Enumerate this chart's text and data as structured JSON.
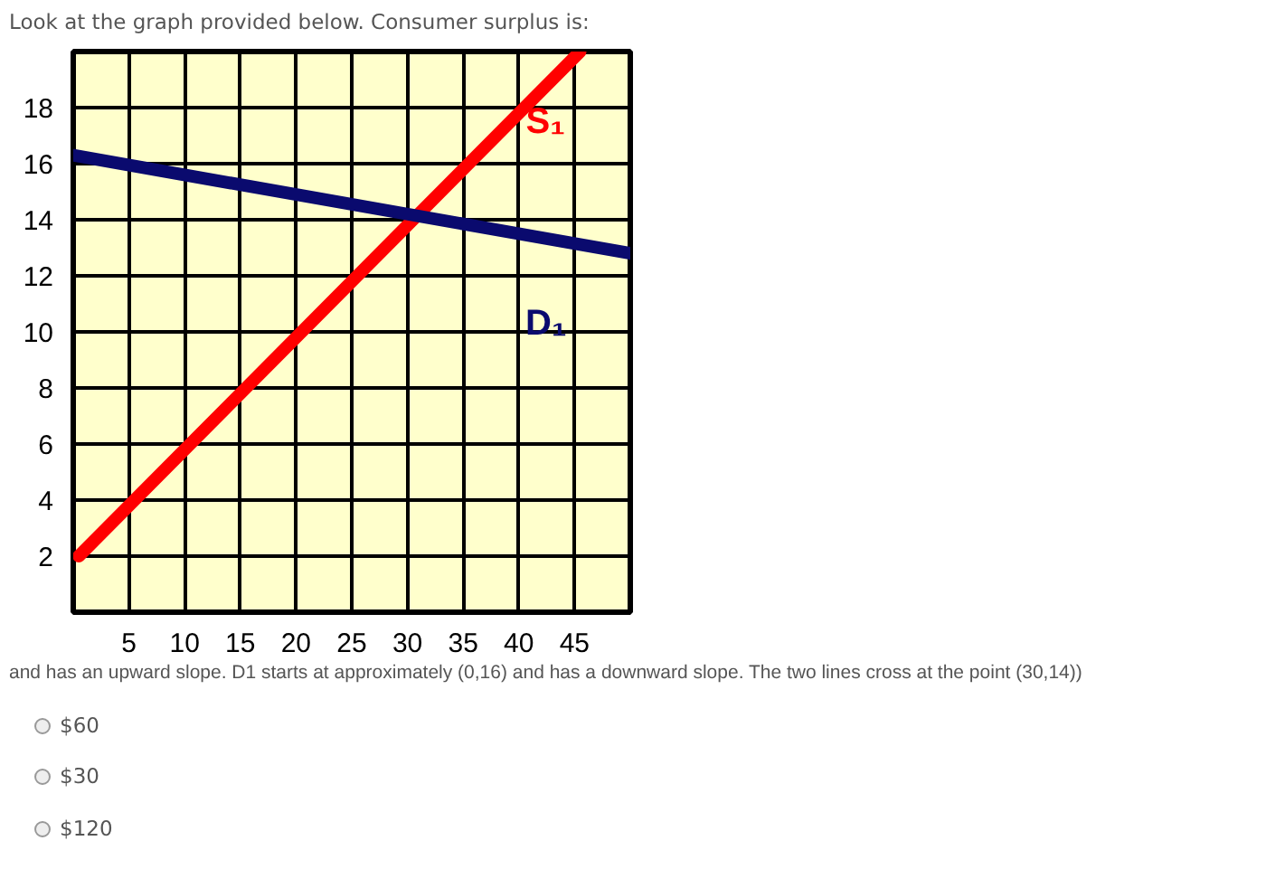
{
  "chart_data": {
    "type": "line",
    "title": "Look at the graph provided below. Consumer surplus is:",
    "annotations": [
      "and has an upward slope. D1 starts at approximately (0,16) and has a downward slope. The two lines cross at the point (30,14))",
      "$60",
      "$30",
      "$120"
    ],
    "xlim": [
      0,
      50
    ],
    "ylim": [
      0,
      20
    ],
    "xticks": [
      {
        "value": 0,
        "label": null
      },
      5,
      10,
      15,
      20,
      25,
      30,
      35,
      40,
      45,
      {
        "value": 50,
        "label": null
      }
    ],
    "yticks": [
      {
        "value": 0,
        "label": null
      },
      2,
      4,
      6,
      8,
      10,
      12,
      14,
      16,
      18,
      {
        "value": 20,
        "label": null
      }
    ],
    "grid": true,
    "marker": "none",
    "line_style": "solid",
    "series": [
      {
        "name": "S₁",
        "color": "#ff0000",
        "x": [
          0.5,
          45.5
        ],
        "values": [
          2,
          20
        ]
      },
      {
        "name": "D₁",
        "color": "#0a0a6e",
        "x": [
          0,
          50
        ],
        "values": [
          16.3,
          12.8
        ]
      }
    ]
  }
}
